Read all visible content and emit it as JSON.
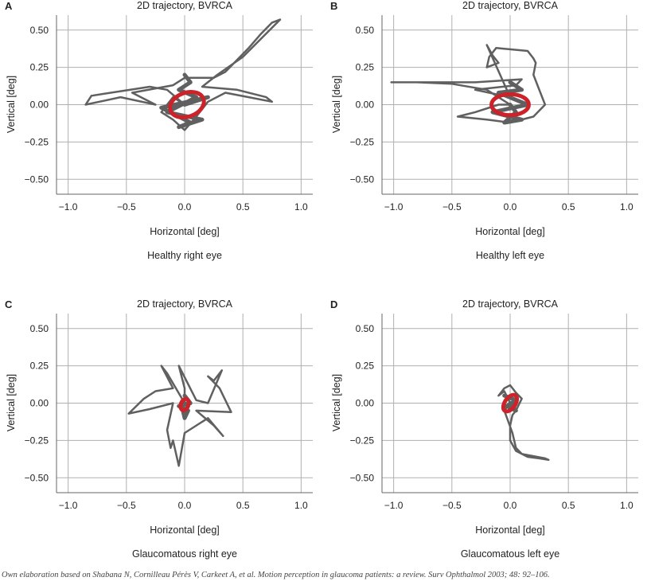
{
  "footer_text": "Own elaboration based on Shabana N, Cornilleau Pérès V, Carkeet A, et al. Motion perception in glaucoma patients: a review. Surv Ophthalmol 2003; 48: 92–106.",
  "colors": {
    "trajectory": "#606060",
    "ellipse": "#cc2229",
    "grid": "#b0b0b0",
    "axes": "#666666"
  },
  "chart_data": [
    {
      "panel": "A",
      "type": "scatter",
      "title": "2D trajectory, BVRCA",
      "xlabel": "Horizontal [deg]",
      "ylabel": "Vertical [deg]",
      "caption": "Healthy right eye",
      "xlim": [
        -1.1,
        1.1
      ],
      "ylim": [
        -0.6,
        0.6
      ],
      "xticks": [
        -1.0,
        -0.5,
        0.0,
        0.5,
        1.0
      ],
      "yticks": [
        0.5,
        0.25,
        0.0,
        -0.25,
        -0.5
      ],
      "xtick_labels": [
        "−1.0",
        "−0.5",
        "0.0",
        "0.5",
        "1.0"
      ],
      "ytick_labels": [
        "0.50",
        "0.25",
        "0.00",
        "−0.25",
        "−0.50"
      ],
      "grid": true,
      "series": [
        {
          "values": [
            [
              0,
              0
            ],
            [
              -0.15,
              0.1
            ],
            [
              -0.3,
              0.12
            ],
            [
              -0.55,
              0.09
            ],
            [
              -0.8,
              0.06
            ],
            [
              -0.85,
              0.0
            ],
            [
              -0.55,
              0.05
            ],
            [
              -0.25,
              0.0
            ],
            [
              -0.45,
              0.08
            ],
            [
              -0.1,
              0.13
            ],
            [
              0.0,
              0.18
            ],
            [
              0.25,
              0.18
            ],
            [
              0.35,
              0.22
            ],
            [
              0.45,
              0.3
            ],
            [
              0.55,
              0.38
            ],
            [
              0.65,
              0.47
            ],
            [
              0.75,
              0.55
            ],
            [
              0.82,
              0.57
            ],
            [
              0.5,
              0.32
            ],
            [
              0.28,
              0.2
            ],
            [
              0.15,
              0.12
            ],
            [
              0.45,
              0.1
            ],
            [
              0.7,
              0.05
            ],
            [
              0.75,
              0.02
            ],
            [
              0.55,
              0.05
            ],
            [
              0.35,
              0.08
            ],
            [
              0.2,
              0.02
            ],
            [
              0.1,
              -0.08
            ],
            [
              0.0,
              -0.17
            ],
            [
              -0.1,
              -0.1
            ],
            [
              -0.2,
              -0.05
            ],
            [
              -0.1,
              0.05
            ],
            [
              0.0,
              0.0
            ]
          ]
        },
        {
          "values": [
            [
              0.0,
              0.2
            ],
            [
              0.05,
              0.15
            ],
            [
              -0.05,
              0.1
            ],
            [
              0.1,
              0.05
            ],
            [
              -0.15,
              -0.05
            ],
            [
              0.15,
              -0.1
            ],
            [
              -0.05,
              -0.15
            ],
            [
              0.05,
              -0.12
            ],
            [
              -0.2,
              -0.02
            ],
            [
              0.2,
              0.05
            ],
            [
              0.0,
              0.0
            ]
          ]
        }
      ],
      "ellipse": {
        "cx": 0.02,
        "cy": 0.0,
        "rx": 0.15,
        "ry": 0.08,
        "angle_deg": 20
      }
    },
    {
      "panel": "B",
      "type": "scatter",
      "title": "2D trajectory, BVRCA",
      "xlabel": "Horizontal [deg]",
      "ylabel": "Vertical [deg]",
      "caption": "Healthy left eye",
      "xlim": [
        -1.1,
        1.1
      ],
      "ylim": [
        -0.6,
        0.6
      ],
      "xticks": [
        -1.0,
        -0.5,
        0.0,
        0.5,
        1.0
      ],
      "yticks": [
        0.5,
        0.25,
        0.0,
        -0.25,
        -0.5
      ],
      "xtick_labels": [
        "−1.0",
        "−0.5",
        "0.0",
        "0.5",
        "1.0"
      ],
      "ytick_labels": [
        "0.50",
        "0.25",
        "0.00",
        "−0.25",
        "−0.50"
      ],
      "grid": true,
      "series": [
        {
          "values": [
            [
              0,
              0
            ],
            [
              -0.2,
              0.1
            ],
            [
              -0.5,
              0.14
            ],
            [
              -0.8,
              0.15
            ],
            [
              -1.02,
              0.15
            ],
            [
              -0.7,
              0.15
            ],
            [
              -0.3,
              0.15
            ],
            [
              0.1,
              0.17
            ],
            [
              0.05,
              0.13
            ],
            [
              -0.3,
              0.1
            ],
            [
              0.0,
              0.05
            ],
            [
              -0.2,
              0.4
            ],
            [
              -0.15,
              0.33
            ],
            [
              -0.1,
              0.28
            ],
            [
              -0.2,
              0.25
            ],
            [
              -0.18,
              0.32
            ],
            [
              -0.12,
              0.38
            ],
            [
              0.15,
              0.36
            ],
            [
              0.2,
              0.31
            ],
            [
              0.22,
              0.28
            ],
            [
              0.2,
              0.2
            ],
            [
              0.25,
              0.1
            ],
            [
              0.3,
              0.0
            ],
            [
              0.2,
              -0.08
            ],
            [
              0.0,
              -0.12
            ],
            [
              -0.2,
              -0.1
            ],
            [
              -0.45,
              -0.08
            ],
            [
              -0.3,
              -0.05
            ],
            [
              -0.1,
              0.0
            ],
            [
              0.0,
              0.0
            ]
          ]
        },
        {
          "values": [
            [
              0.0,
              0.15
            ],
            [
              0.1,
              0.1
            ],
            [
              -0.1,
              0.08
            ],
            [
              0.15,
              0.0
            ],
            [
              -0.15,
              -0.05
            ],
            [
              0.1,
              -0.1
            ],
            [
              -0.05,
              -0.12
            ],
            [
              0.05,
              -0.05
            ],
            [
              0.0,
              0.0
            ]
          ]
        }
      ],
      "ellipse": {
        "cx": 0.0,
        "cy": 0.0,
        "rx": 0.16,
        "ry": 0.07,
        "angle_deg": 0
      }
    },
    {
      "panel": "C",
      "type": "scatter",
      "title": "2D trajectory, BVRCA",
      "xlabel": "Horizontal [deg]",
      "ylabel": "Vertical [deg]",
      "caption": "Glaucomatous right eye",
      "xlim": [
        -1.1,
        1.1
      ],
      "ylim": [
        -0.6,
        0.6
      ],
      "xticks": [
        -1.0,
        -0.5,
        0.0,
        0.5,
        1.0
      ],
      "yticks": [
        0.5,
        0.25,
        0.0,
        -0.25,
        -0.5
      ],
      "xtick_labels": [
        "−1.0",
        "−0.5",
        "0.0",
        "0.5",
        "1.0"
      ],
      "ytick_labels": [
        "0.50",
        "0.25",
        "0.00",
        "−0.25",
        "−0.50"
      ],
      "grid": true,
      "series": [
        {
          "values": [
            [
              0,
              0
            ],
            [
              -0.15,
              0.2
            ],
            [
              -0.2,
              0.25
            ],
            [
              -0.1,
              0.1
            ],
            [
              -0.25,
              0.08
            ],
            [
              -0.35,
              0.03
            ],
            [
              -0.48,
              -0.07
            ],
            [
              -0.3,
              -0.04
            ],
            [
              -0.1,
              0.0
            ],
            [
              -0.15,
              -0.18
            ],
            [
              -0.12,
              -0.3
            ],
            [
              -0.1,
              -0.25
            ],
            [
              -0.05,
              -0.42
            ],
            [
              0.0,
              -0.2
            ],
            [
              0.2,
              -0.1
            ],
            [
              0.33,
              -0.22
            ],
            [
              0.25,
              -0.15
            ],
            [
              0.1,
              -0.05
            ],
            [
              0.4,
              -0.06
            ],
            [
              0.3,
              0.1
            ],
            [
              0.2,
              0.18
            ],
            [
              0.25,
              0.15
            ],
            [
              0.32,
              0.22
            ],
            [
              0.2,
              0.0
            ],
            [
              0.1,
              0.02
            ],
            [
              -0.05,
              0.25
            ],
            [
              0.0,
              0.1
            ],
            [
              0.0,
              0.0
            ]
          ]
        },
        {
          "values": [
            [
              0.0,
              0.05
            ],
            [
              0.05,
              0.0
            ],
            [
              -0.05,
              -0.02
            ],
            [
              0.03,
              -0.05
            ],
            [
              0.0,
              -0.1
            ],
            [
              -0.03,
              0.0
            ],
            [
              0.0,
              0.0
            ]
          ]
        }
      ],
      "ellipse": {
        "cx": 0.0,
        "cy": -0.01,
        "rx": 0.05,
        "ry": 0.025,
        "angle_deg": 70
      }
    },
    {
      "panel": "D",
      "type": "scatter",
      "title": "2D trajectory, BVRCA",
      "xlabel": "Horizontal [deg]",
      "ylabel": "Vertical [deg]",
      "caption": "Glaucomatous left eye",
      "xlim": [
        -1.1,
        1.1
      ],
      "ylim": [
        -0.6,
        0.6
      ],
      "xticks": [
        -1.0,
        -0.5,
        0.0,
        0.5,
        1.0
      ],
      "yticks": [
        0.5,
        0.25,
        0.0,
        -0.25,
        -0.5
      ],
      "xtick_labels": [
        "−1.0",
        "−0.5",
        "0.0",
        "0.5",
        "1.0"
      ],
      "ytick_labels": [
        "0.50",
        "0.25",
        "0.00",
        "−0.25",
        "−0.50"
      ],
      "grid": true,
      "series": [
        {
          "values": [
            [
              0,
              0
            ],
            [
              -0.05,
              0.08
            ],
            [
              -0.1,
              0.05
            ],
            [
              -0.05,
              0.1
            ],
            [
              0.0,
              0.12
            ],
            [
              0.05,
              0.07
            ],
            [
              0.1,
              0.03
            ],
            [
              0.05,
              -0.05
            ],
            [
              0.02,
              -0.08
            ],
            [
              0.0,
              -0.15
            ],
            [
              0.0,
              -0.25
            ],
            [
              0.05,
              -0.32
            ],
            [
              0.15,
              -0.36
            ],
            [
              0.25,
              -0.37
            ],
            [
              0.33,
              -0.38
            ],
            [
              0.3,
              -0.37
            ],
            [
              0.1,
              -0.34
            ],
            [
              0.05,
              -0.3
            ],
            [
              0.02,
              -0.2
            ],
            [
              -0.05,
              -0.05
            ],
            [
              0.0,
              0.0
            ]
          ]
        },
        {
          "values": [
            [
              -0.05,
              0.05
            ],
            [
              0.05,
              0.02
            ],
            [
              -0.03,
              -0.02
            ],
            [
              0.05,
              -0.05
            ],
            [
              0.0,
              0.0
            ]
          ]
        }
      ],
      "ellipse": {
        "cx": 0.0,
        "cy": 0.0,
        "rx": 0.08,
        "ry": 0.035,
        "angle_deg": 55
      }
    }
  ]
}
